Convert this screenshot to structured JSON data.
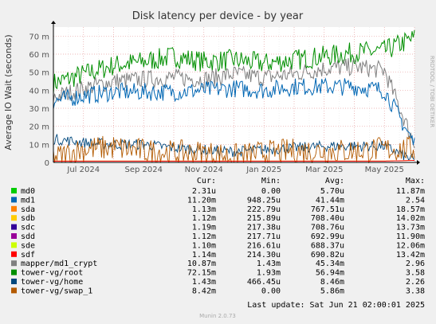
{
  "title": "Disk latency per device - by year",
  "ylabel": "Average IO Wait (seconds)",
  "watermark": "RRDTOOL / TOBI OETIKER",
  "footer": "Munin 2.0.73",
  "last_update": "Last update: Sat Jun 21 02:00:01 2025",
  "colors": {
    "background": "#f0f0f0",
    "plot_bg": "#ffffff",
    "grid_major": "#e6a0a0",
    "grid_minor": "#ececec",
    "axis": "#000000"
  },
  "legend_headers": [
    "Cur:",
    "Min:",
    "Avg:",
    "Max:"
  ],
  "legend": [
    {
      "name": "md0",
      "color": "#00cc00",
      "cur": "2.31u",
      "min": "0.00",
      "avg": "5.70u",
      "max": "11.87m"
    },
    {
      "name": "md1",
      "color": "#0066b3",
      "cur": "11.20m",
      "min": "948.25u",
      "avg": "41.44m",
      "max": "2.54"
    },
    {
      "name": "sda",
      "color": "#ff8000",
      "cur": "1.13m",
      "min": "222.79u",
      "avg": "767.51u",
      "max": "18.57m"
    },
    {
      "name": "sdb",
      "color": "#ffcc00",
      "cur": "1.12m",
      "min": "215.89u",
      "avg": "708.40u",
      "max": "14.02m"
    },
    {
      "name": "sdc",
      "color": "#330099",
      "cur": "1.19m",
      "min": "217.38u",
      "avg": "708.76u",
      "max": "13.73m"
    },
    {
      "name": "sdd",
      "color": "#990099",
      "cur": "1.12m",
      "min": "217.71u",
      "avg": "692.99u",
      "max": "11.90m"
    },
    {
      "name": "sde",
      "color": "#ccff00",
      "cur": "1.10m",
      "min": "216.61u",
      "avg": "688.37u",
      "max": "12.06m"
    },
    {
      "name": "sdf",
      "color": "#ff0000",
      "cur": "1.14m",
      "min": "214.30u",
      "avg": "690.82u",
      "max": "13.42m"
    },
    {
      "name": "mapper/md1_crypt",
      "color": "#808080",
      "cur": "10.87m",
      "min": "1.43m",
      "avg": "45.34m",
      "max": "2.96"
    },
    {
      "name": "tower-vg/root",
      "color": "#008f00",
      "cur": "72.15m",
      "min": "1.93m",
      "avg": "56.94m",
      "max": "3.58"
    },
    {
      "name": "tower-vg/home",
      "color": "#00487d",
      "cur": "1.43m",
      "min": "466.45u",
      "avg": "8.46m",
      "max": "2.26"
    },
    {
      "name": "tower-vg/swap_1",
      "color": "#b35a00",
      "cur": "8.42m",
      "min": "0.00",
      "avg": "5.86m",
      "max": "3.38"
    }
  ],
  "chart_data": {
    "type": "line",
    "title": "Disk latency per device - by year",
    "xlabel": "",
    "ylabel": "Average IO Wait (seconds)",
    "yticks": [
      "0",
      "10 m",
      "20 m",
      "30 m",
      "40 m",
      "50 m",
      "60 m",
      "70 m"
    ],
    "ylim": [
      0,
      0.075
    ],
    "xticks": [
      "Jul 2024",
      "Sep 2024",
      "Nov 2024",
      "Jan 2025",
      "Mar 2025",
      "May 2025"
    ],
    "x": [
      "2024-06",
      "2024-07",
      "2024-08",
      "2024-09",
      "2024-10",
      "2024-11",
      "2024-12",
      "2025-01",
      "2025-02",
      "2025-03",
      "2025-04",
      "2025-05",
      "2025-06"
    ],
    "grid": true,
    "series": [
      {
        "name": "tower-vg/root",
        "color": "#008f00",
        "values": [
          0.045,
          0.05,
          0.055,
          0.057,
          0.06,
          0.057,
          0.058,
          0.056,
          0.058,
          0.06,
          0.062,
          0.063,
          0.07
        ]
      },
      {
        "name": "mapper/md1_crypt",
        "color": "#808080",
        "values": [
          0.037,
          0.042,
          0.046,
          0.047,
          0.048,
          0.047,
          0.05,
          0.048,
          0.05,
          0.053,
          0.054,
          0.052,
          0.011
        ]
      },
      {
        "name": "md1",
        "color": "#0066b3",
        "values": [
          0.035,
          0.038,
          0.04,
          0.04,
          0.04,
          0.041,
          0.042,
          0.041,
          0.043,
          0.043,
          0.043,
          0.041,
          0.011
        ]
      },
      {
        "name": "tower-vg/home",
        "color": "#00487d",
        "values": [
          0.013,
          0.011,
          0.01,
          0.01,
          0.008,
          0.007,
          0.006,
          0.007,
          0.008,
          0.009,
          0.009,
          0.009,
          0.001
        ]
      },
      {
        "name": "tower-vg/swap_1",
        "color": "#b35a00",
        "values": [
          0.003,
          0.008,
          0.009,
          0.007,
          0.006,
          0.006,
          0.004,
          0.006,
          0.007,
          0.007,
          0.007,
          0.008,
          0.008
        ]
      },
      {
        "name": "md0",
        "color": "#00cc00",
        "values": [
          0,
          0,
          0,
          0,
          0,
          0,
          0,
          0,
          0,
          0,
          0,
          0,
          0
        ]
      },
      {
        "name": "sda",
        "color": "#ff8000",
        "values": [
          0.0008,
          0.0008,
          0.0008,
          0.0008,
          0.0008,
          0.0008,
          0.0008,
          0.0008,
          0.0008,
          0.0008,
          0.0008,
          0.0008,
          0.0011
        ]
      },
      {
        "name": "sdf",
        "color": "#ff0000",
        "values": [
          0.0007,
          0.0007,
          0.0007,
          0.0007,
          0.0007,
          0.0007,
          0.0007,
          0.0007,
          0.0007,
          0.0007,
          0.0007,
          0.0007,
          0.0011
        ]
      }
    ]
  }
}
